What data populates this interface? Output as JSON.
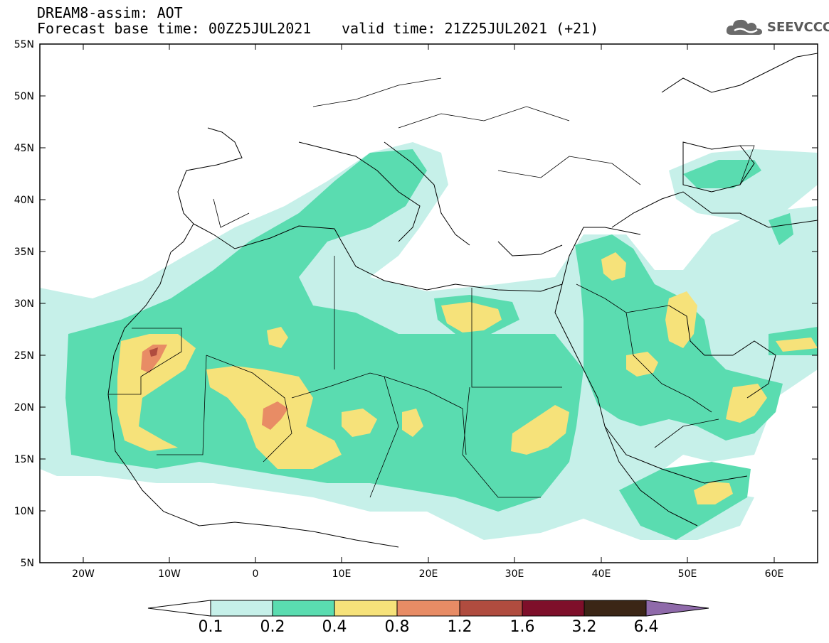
{
  "header": {
    "title": "DREAM8-assim: AOT",
    "base_time": "Forecast base time: 00Z25JUL2021",
    "valid_time": "valid time: 21Z25JUL2021 (+21)"
  },
  "logo": {
    "text": "SEEVCCC",
    "icon": "cloud-icon"
  },
  "map": {
    "lon_range": [
      -25,
      65
    ],
    "lat_range": [
      5,
      55
    ],
    "lat_labels": [
      "55N",
      "50N",
      "45N",
      "40N",
      "35N",
      "30N",
      "25N",
      "20N",
      "15N",
      "10N",
      "5N"
    ],
    "lon_labels": [
      "20W",
      "10W",
      "0",
      "10E",
      "20E",
      "30E",
      "40E",
      "50E",
      "60E"
    ]
  },
  "colorbar": {
    "labels": [
      "0.1",
      "0.2",
      "0.4",
      "0.8",
      "1.2",
      "1.6",
      "3.2",
      "6.4"
    ],
    "colors": [
      "#ffffff",
      "#c6f0e9",
      "#5adcb0",
      "#f6e27a",
      "#e88c65",
      "#b04c3f",
      "#7e0f2a",
      "#3b2616",
      "#8f6aaa"
    ]
  }
}
